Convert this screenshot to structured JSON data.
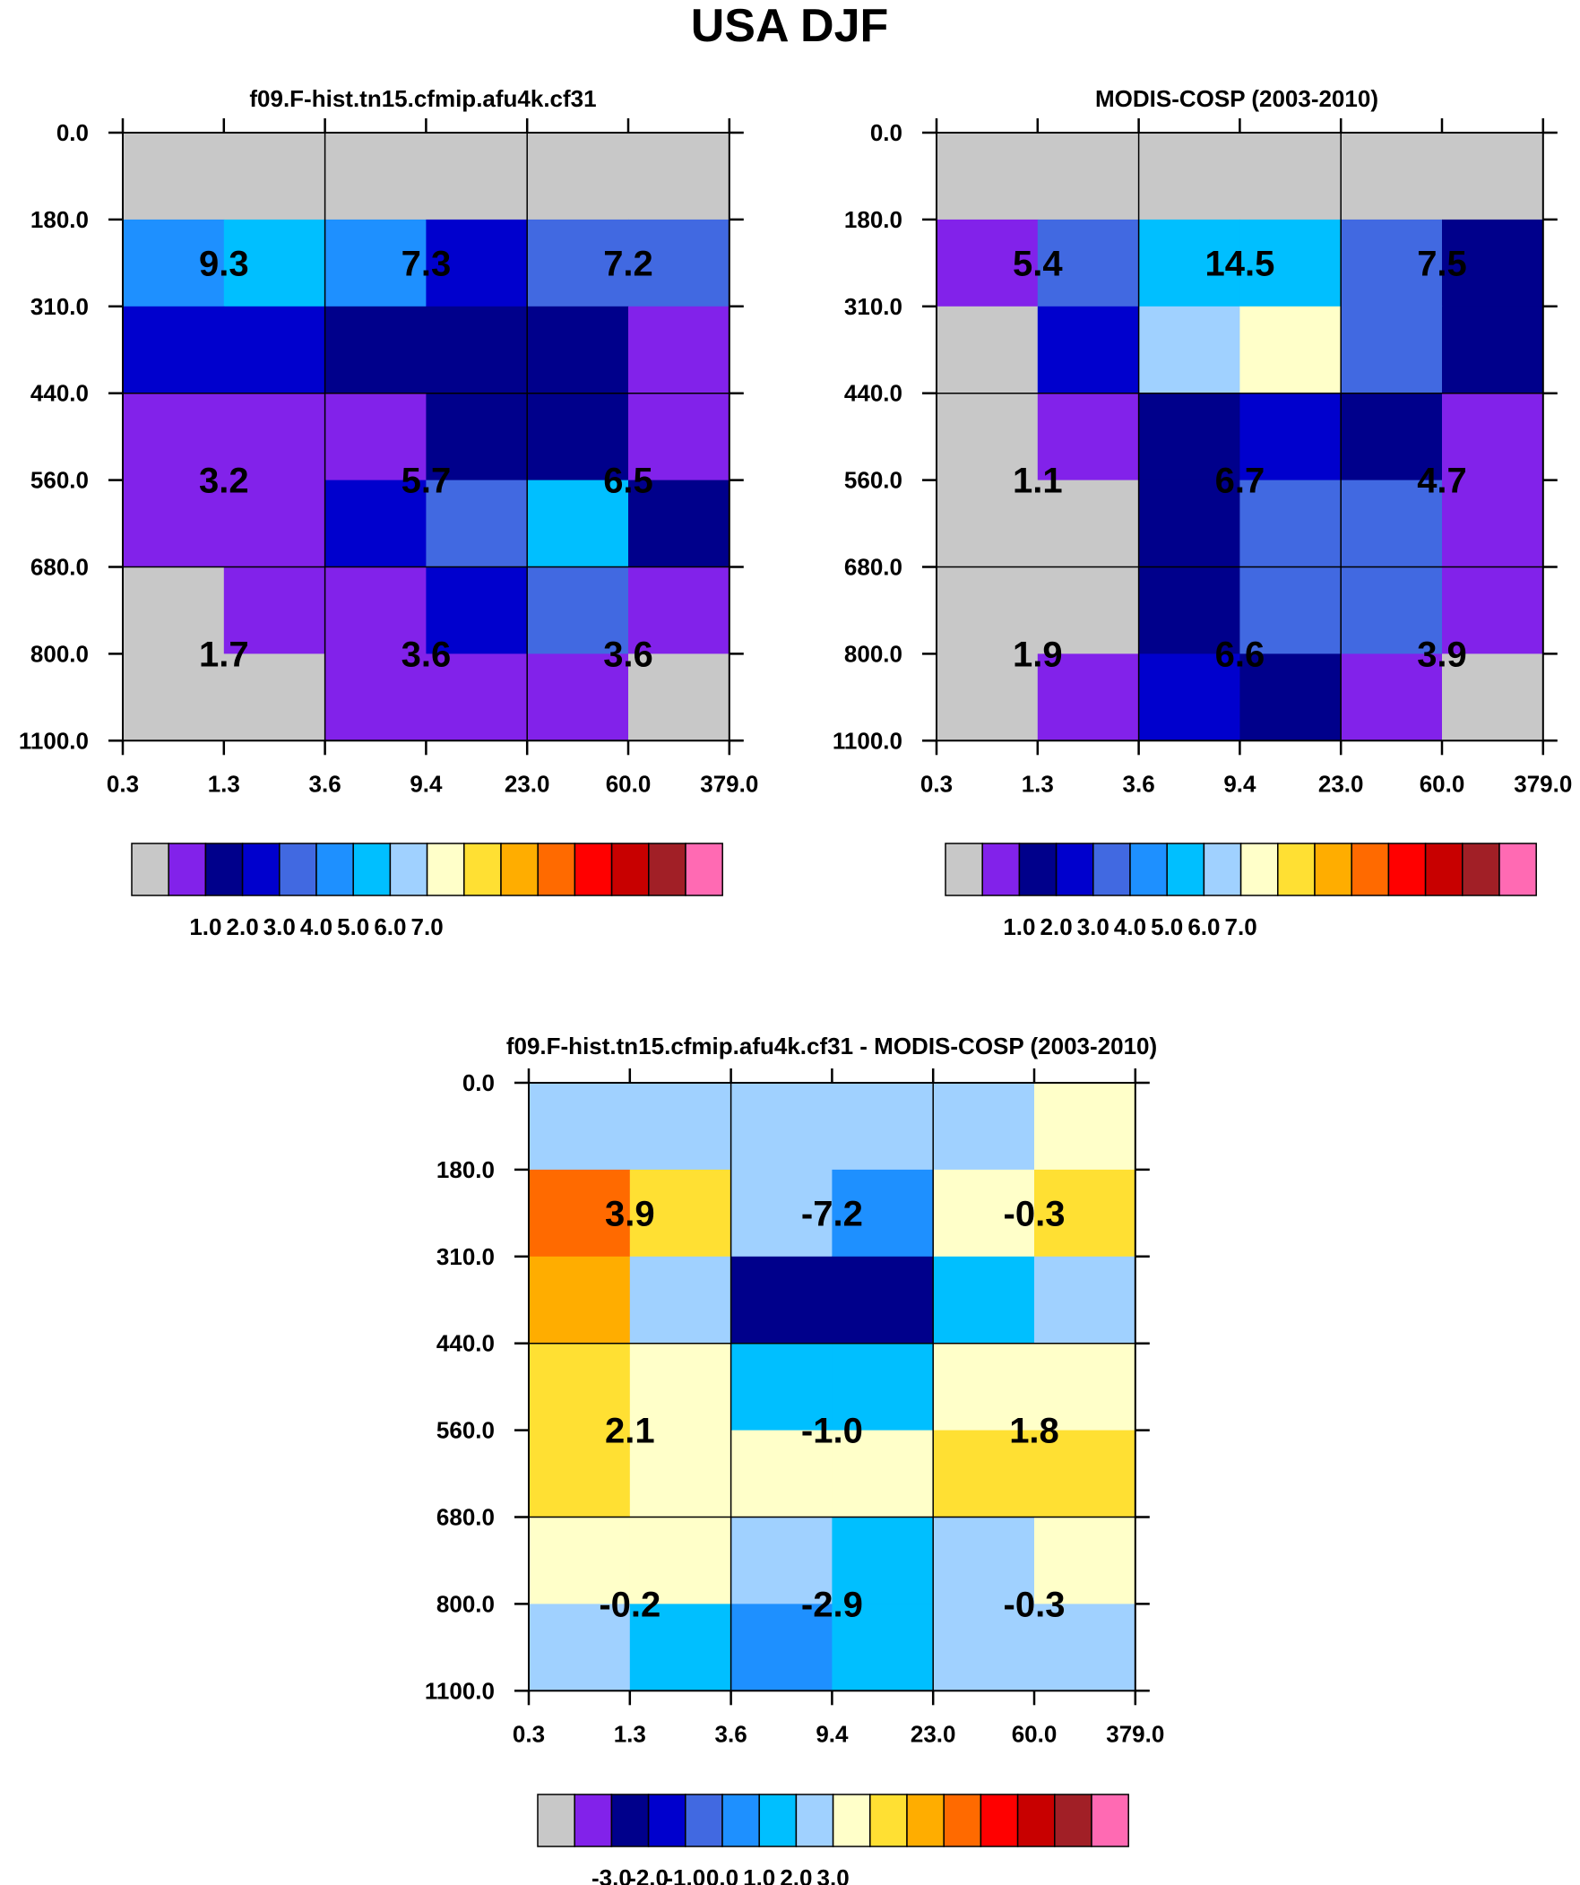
{
  "page_title": "USA DJF",
  "axes": {
    "y_ticks": [
      "0.0",
      "180.0",
      "310.0",
      "440.0",
      "560.0",
      "680.0",
      "800.0",
      "1100.0"
    ],
    "x_ticks": [
      "0.3",
      "1.3",
      "3.6",
      "9.4",
      "23.0",
      "60.0",
      "379.0"
    ]
  },
  "color_levels": [
    "#c8c8c8",
    "#8222ea",
    "#00008b",
    "#0000cd",
    "#4169e1",
    "#1e90ff",
    "#00bfff",
    "#a0d1ff",
    "#ffffc9",
    "#ffe033",
    "#ffad00",
    "#ff6a00",
    "#ff0000",
    "#c80000",
    "#a11f26",
    "#ff6ab3"
  ],
  "chart_data": [
    {
      "type": "heatmap",
      "title": "f09.F-hist.tn15.cfmip.afu4k.cf31",
      "colorbar_labels": [
        "1.0",
        "2.0",
        "3.0",
        "4.0",
        "5.0",
        "6.0",
        "7.0"
      ],
      "cell_color_index": [
        [
          0,
          0,
          0,
          0,
          0,
          0
        ],
        [
          5,
          6,
          5,
          3,
          4,
          4
        ],
        [
          3,
          3,
          2,
          2,
          2,
          1
        ],
        [
          1,
          1,
          1,
          2,
          2,
          1
        ],
        [
          1,
          1,
          3,
          4,
          6,
          2
        ],
        [
          0,
          1,
          1,
          3,
          4,
          1
        ],
        [
          0,
          0,
          1,
          1,
          1,
          0
        ]
      ],
      "block_values": [
        [
          "9.3",
          "7.3",
          "7.2"
        ],
        [
          "3.2",
          "5.7",
          "6.5"
        ],
        [
          "1.7",
          "3.6",
          "3.6"
        ]
      ]
    },
    {
      "type": "heatmap",
      "title": "MODIS-COSP (2003-2010)",
      "colorbar_labels": [
        "1.0",
        "2.0",
        "3.0",
        "4.0",
        "5.0",
        "6.0",
        "7.0"
      ],
      "cell_color_index": [
        [
          0,
          0,
          0,
          0,
          0,
          0
        ],
        [
          1,
          4,
          6,
          6,
          4,
          2
        ],
        [
          0,
          3,
          7,
          8,
          4,
          2
        ],
        [
          0,
          1,
          2,
          3,
          2,
          1
        ],
        [
          0,
          0,
          2,
          4,
          4,
          1
        ],
        [
          0,
          0,
          2,
          4,
          4,
          1
        ],
        [
          0,
          1,
          3,
          2,
          1,
          0
        ]
      ],
      "block_values": [
        [
          "5.4",
          "14.5",
          "7.5"
        ],
        [
          "1.1",
          "6.7",
          "4.7"
        ],
        [
          "1.9",
          "6.6",
          "3.9"
        ]
      ]
    },
    {
      "type": "heatmap",
      "title": "f09.F-hist.tn15.cfmip.afu4k.cf31 - MODIS-COSP (2003-2010)",
      "colorbar_labels": [
        "-3.0",
        "-2.0",
        "-1.0",
        "0.0",
        "1.0",
        "2.0",
        "3.0"
      ],
      "cell_color_index": [
        [
          7,
          7,
          7,
          7,
          7,
          8
        ],
        [
          11,
          9,
          7,
          5,
          8,
          9
        ],
        [
          10,
          7,
          2,
          2,
          6,
          7
        ],
        [
          9,
          8,
          6,
          6,
          8,
          8
        ],
        [
          9,
          8,
          8,
          8,
          9,
          9
        ],
        [
          8,
          8,
          7,
          6,
          7,
          8
        ],
        [
          7,
          6,
          5,
          6,
          7,
          7
        ]
      ],
      "block_values": [
        [
          "3.9",
          "-7.2",
          "-0.3"
        ],
        [
          "2.1",
          "-1.0",
          "1.8"
        ],
        [
          "-0.2",
          "-2.9",
          "-0.3"
        ]
      ]
    }
  ]
}
